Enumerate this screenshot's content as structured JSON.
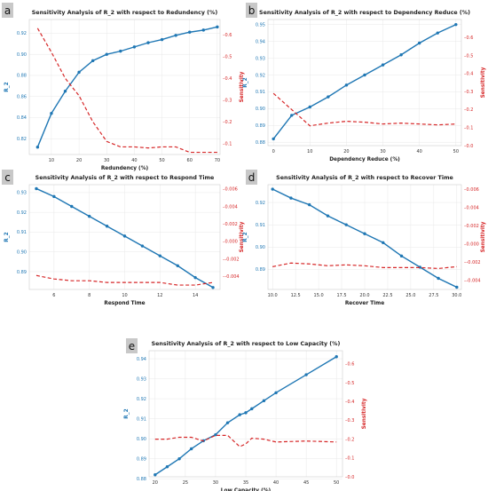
{
  "chart_data": [
    {
      "panel": "a",
      "type": "line",
      "title": "Sensitivity Analysis of R_2 with respect to Redundency (%)",
      "xlabel": "Redundency (%)",
      "ylabel": "R_2",
      "ylabel_right": "Sensitivity",
      "xlim": [
        2,
        71
      ],
      "xticks": [
        10,
        20,
        30,
        40,
        50,
        60,
        70
      ],
      "ylim": [
        0.805,
        0.933
      ],
      "yticks": [
        0.82,
        0.84,
        0.86,
        0.88,
        0.9,
        0.92
      ],
      "ylim_right": [
        0.05,
        0.67
      ],
      "yticks_right": [
        0.1,
        0.2,
        0.3,
        0.4,
        0.5,
        0.6
      ],
      "series": [
        {
          "name": "R_2",
          "axis": "left",
          "x": [
            5,
            10,
            15,
            20,
            25,
            30,
            35,
            40,
            45,
            50,
            55,
            60,
            65,
            70
          ],
          "values": [
            0.812,
            0.844,
            0.865,
            0.883,
            0.894,
            0.9,
            0.903,
            0.907,
            0.911,
            0.914,
            0.918,
            0.921,
            0.923,
            0.926
          ]
        },
        {
          "name": "Sensitivity",
          "axis": "right",
          "x": [
            5,
            10,
            15,
            20,
            25,
            30,
            35,
            40,
            45,
            50,
            55,
            60,
            65,
            70
          ],
          "values": [
            0.63,
            0.52,
            0.4,
            0.32,
            0.2,
            0.11,
            0.085,
            0.085,
            0.08,
            0.085,
            0.085,
            0.06,
            0.06,
            0.06
          ]
        }
      ]
    },
    {
      "panel": "b",
      "type": "line",
      "title": "Sensitivity Analysis of R_2 with respect to Dependency Reduce (%)",
      "xlabel": "Dependency Reduce (%)",
      "ylabel": "R_2",
      "ylabel_right": "Sensitivity",
      "xlim": [
        -1.5,
        51.5
      ],
      "xticks": [
        0,
        10,
        20,
        30,
        40,
        50
      ],
      "ylim": [
        0.878,
        0.953
      ],
      "yticks": [
        0.88,
        0.89,
        0.9,
        0.91,
        0.92,
        0.93,
        0.94,
        0.95
      ],
      "ylim_right": [
        0.0,
        0.7
      ],
      "yticks_right": [
        0.0,
        0.1,
        0.2,
        0.3,
        0.4,
        0.5,
        0.6
      ],
      "series": [
        {
          "name": "R_2",
          "axis": "left",
          "x": [
            0,
            5,
            10,
            15,
            20,
            25,
            30,
            35,
            40,
            45,
            50
          ],
          "values": [
            0.882,
            0.896,
            0.901,
            0.907,
            0.914,
            0.92,
            0.926,
            0.932,
            0.939,
            0.945,
            0.95
          ]
        },
        {
          "name": "Sensitivity",
          "axis": "right",
          "x": [
            0,
            5,
            10,
            15,
            20,
            25,
            30,
            35,
            40,
            45,
            50
          ],
          "values": [
            0.29,
            0.2,
            0.11,
            0.125,
            0.135,
            0.13,
            0.12,
            0.125,
            0.12,
            0.115,
            0.12
          ]
        }
      ]
    },
    {
      "panel": "c",
      "type": "line",
      "title": "Sensitivity Analysis of R_2 with respect to Respond Time",
      "xlabel": "Respond Time",
      "ylabel": "R_2",
      "ylabel_right": "Sensitivity",
      "xlim": [
        4.6,
        15.4
      ],
      "xticks": [
        6,
        8,
        10,
        12,
        14
      ],
      "ylim": [
        0.881,
        0.934
      ],
      "yticks": [
        0.89,
        0.9,
        0.91,
        0.92,
        0.93
      ],
      "ylim_right": [
        -0.0055,
        0.0065
      ],
      "yticks_right": [
        -0.004,
        -0.002,
        0.0,
        0.002,
        0.004,
        0.006
      ],
      "series": [
        {
          "name": "R_2",
          "axis": "left",
          "x": [
            5,
            6,
            7,
            8,
            9,
            10,
            11,
            12,
            13,
            14,
            15
          ],
          "values": [
            0.932,
            0.928,
            0.923,
            0.918,
            0.913,
            0.908,
            0.903,
            0.898,
            0.893,
            0.887,
            0.882
          ]
        },
        {
          "name": "Sensitivity",
          "axis": "right",
          "x": [
            5,
            6,
            7,
            8,
            9,
            10,
            11,
            12,
            13,
            14,
            15
          ],
          "values": [
            -0.0039,
            -0.0043,
            -0.0045,
            -0.0045,
            -0.0047,
            -0.0047,
            -0.0047,
            -0.0047,
            -0.005,
            -0.005,
            -0.0047
          ]
        }
      ]
    },
    {
      "panel": "d",
      "type": "line",
      "title": "Sensitivity Analysis of R_2 with respect to Recover Time",
      "xlabel": "Recover Time",
      "ylabel": "R_2",
      "ylabel_right": "Sensitivity",
      "xlim": [
        9.5,
        30.5
      ],
      "xticks": [
        10.0,
        12.5,
        15.0,
        17.5,
        20.0,
        22.5,
        25.0,
        27.5,
        30.0
      ],
      "ylim": [
        0.881,
        0.928
      ],
      "yticks": [
        0.89,
        0.9,
        0.91,
        0.92
      ],
      "ylim_right": [
        -0.005,
        0.0065
      ],
      "yticks_right": [
        -0.004,
        -0.002,
        0.0,
        0.002,
        0.004,
        0.006
      ],
      "series": [
        {
          "name": "R_2",
          "axis": "left",
          "x": [
            10,
            12,
            14,
            16,
            18,
            20,
            22,
            24,
            26,
            28,
            30
          ],
          "values": [
            0.926,
            0.922,
            0.919,
            0.914,
            0.91,
            0.906,
            0.902,
            0.896,
            0.891,
            0.886,
            0.882
          ]
        },
        {
          "name": "Sensitivity",
          "axis": "right",
          "x": [
            10,
            12,
            14,
            16,
            18,
            20,
            22,
            24,
            26,
            28,
            30
          ],
          "values": [
            -0.0025,
            -0.0021,
            -0.0022,
            -0.0024,
            -0.0023,
            -0.0024,
            -0.0026,
            -0.0026,
            -0.0026,
            -0.0027,
            -0.0025
          ]
        }
      ]
    },
    {
      "panel": "e",
      "type": "line",
      "title": "Sensitivity Analysis of R_2 with respect to Low Capacity (%)",
      "xlabel": "Low Capacity (%)",
      "ylabel": "R_2",
      "ylabel_right": "Sensitivity",
      "xlim": [
        19,
        51
      ],
      "xticks": [
        20,
        25,
        30,
        35,
        40,
        45,
        50
      ],
      "ylim": [
        0.881,
        0.944
      ],
      "yticks": [
        0.88,
        0.89,
        0.9,
        0.91,
        0.92,
        0.93,
        0.94
      ],
      "ylim_right": [
        0.0,
        0.67
      ],
      "yticks_right": [
        0.0,
        0.1,
        0.2,
        0.3,
        0.4,
        0.5,
        0.6
      ],
      "series": [
        {
          "name": "R_2",
          "axis": "left",
          "x": [
            20,
            22,
            24,
            26,
            28,
            30,
            32,
            34,
            35,
            36,
            38,
            40,
            45,
            50
          ],
          "values": [
            0.882,
            0.886,
            0.89,
            0.895,
            0.899,
            0.902,
            0.908,
            0.912,
            0.913,
            0.915,
            0.919,
            0.923,
            0.932,
            0.941
          ]
        },
        {
          "name": "Sensitivity",
          "axis": "right",
          "x": [
            20,
            22,
            24,
            26,
            28,
            30,
            32,
            34,
            35,
            36,
            38,
            40,
            45,
            50
          ],
          "values": [
            0.2,
            0.2,
            0.21,
            0.21,
            0.19,
            0.22,
            0.22,
            0.16,
            0.175,
            0.205,
            0.2,
            0.185,
            0.19,
            0.185
          ]
        }
      ]
    }
  ]
}
